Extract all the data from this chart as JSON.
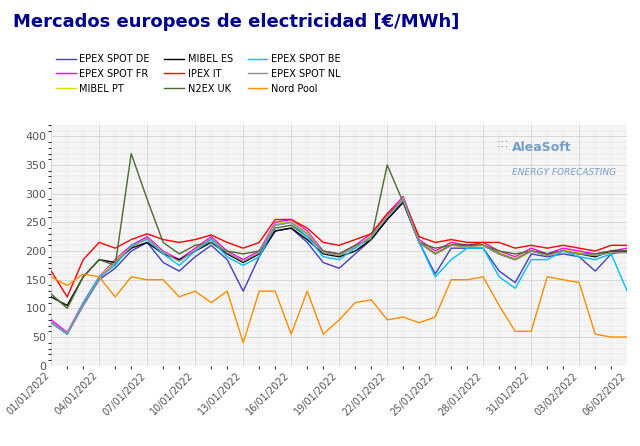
{
  "title": "Mercados europeos de electricidad [€/MWh]",
  "title_color": "#00008B",
  "background_color": "#ffffff",
  "plot_bg_color": "#f5f5f5",
  "grid_color": "#cccccc",
  "xlabels": [
    "01/01/2022",
    "04/01/2022",
    "07/01/2022",
    "10/01/2022",
    "13/01/2022",
    "16/01/2022",
    "19/01/2022",
    "22/01/2022",
    "25/01/2022",
    "28/01/2022",
    "31/01/2022",
    "03/02/2022",
    "06/02/2022"
  ],
  "ylim": [
    0,
    420
  ],
  "yticks": [
    0,
    50,
    100,
    150,
    200,
    250,
    300,
    350,
    400
  ],
  "series": [
    {
      "label": "EPEX SPOT DE",
      "color": "#4040C0",
      "values": [
        75,
        55,
        105,
        150,
        170,
        200,
        215,
        180,
        165,
        190,
        210,
        185,
        130,
        190,
        235,
        240,
        215,
        180,
        170,
        195,
        220,
        255,
        285,
        215,
        160,
        205,
        205,
        205,
        165,
        145,
        195,
        190,
        195,
        190,
        165,
        195,
        200
      ]
    },
    {
      "label": "EPEX SPOT FR",
      "color": "#FF00FF",
      "values": [
        80,
        58,
        110,
        155,
        185,
        210,
        225,
        200,
        185,
        205,
        225,
        200,
        185,
        200,
        250,
        255,
        235,
        200,
        195,
        210,
        230,
        265,
        295,
        220,
        200,
        215,
        210,
        215,
        200,
        190,
        205,
        195,
        205,
        200,
        195,
        200,
        205
      ]
    },
    {
      "label": "MIBEL PT",
      "color": "#DDDD00",
      "values": [
        75,
        56,
        108,
        153,
        183,
        207,
        222,
        198,
        182,
        202,
        222,
        197,
        182,
        197,
        247,
        252,
        232,
        197,
        192,
        207,
        227,
        262,
        292,
        217,
        197,
        212,
        207,
        212,
        197,
        187,
        202,
        192,
        202,
        197,
        192,
        197,
        202
      ]
    },
    {
      "label": "MIBEL ES",
      "color": "#000000",
      "values": [
        120,
        105,
        155,
        185,
        180,
        205,
        215,
        195,
        185,
        200,
        215,
        195,
        180,
        195,
        235,
        240,
        220,
        195,
        190,
        200,
        220,
        255,
        285,
        215,
        195,
        210,
        210,
        210,
        195,
        185,
        200,
        195,
        200,
        195,
        190,
        200,
        200
      ]
    },
    {
      "label": "IPEX IT",
      "color": "#FF0000",
      "values": [
        165,
        120,
        185,
        215,
        205,
        220,
        230,
        220,
        215,
        220,
        228,
        215,
        205,
        215,
        255,
        255,
        240,
        215,
        210,
        220,
        230,
        265,
        290,
        225,
        215,
        220,
        215,
        215,
        215,
        205,
        210,
        205,
        210,
        205,
        200,
        210,
        210
      ]
    },
    {
      "label": "N2EX UK",
      "color": "#4B6B2F",
      "values": [
        125,
        100,
        155,
        185,
        175,
        370,
        290,
        215,
        195,
        210,
        215,
        200,
        195,
        200,
        240,
        245,
        225,
        200,
        195,
        210,
        220,
        350,
        285,
        215,
        205,
        210,
        210,
        210,
        200,
        195,
        200,
        195,
        200,
        195,
        195,
        200,
        200
      ]
    },
    {
      "label": "EPEX SPOT BE",
      "color": "#00BFFF",
      "values": [
        75,
        55,
        110,
        155,
        175,
        210,
        220,
        195,
        175,
        200,
        220,
        190,
        175,
        190,
        245,
        250,
        225,
        190,
        185,
        205,
        225,
        260,
        290,
        215,
        155,
        185,
        205,
        205,
        155,
        135,
        185,
        185,
        200,
        190,
        185,
        195,
        130
      ]
    },
    {
      "label": "EPEX SPOT NL",
      "color": "#909090",
      "values": [
        76,
        56,
        107,
        151,
        180,
        207,
        222,
        198,
        182,
        202,
        222,
        197,
        182,
        197,
        245,
        250,
        230,
        197,
        192,
        207,
        225,
        260,
        290,
        215,
        195,
        210,
        207,
        210,
        195,
        185,
        200,
        192,
        200,
        195,
        192,
        197,
        197
      ]
    },
    {
      "label": "Nord Pool",
      "color": "#FF8C00",
      "values": [
        155,
        140,
        160,
        155,
        120,
        155,
        150,
        150,
        120,
        130,
        110,
        130,
        40,
        130,
        130,
        55,
        130,
        55,
        80,
        110,
        115,
        80,
        85,
        75,
        85,
        150,
        150,
        155,
        105,
        60,
        60,
        155,
        150,
        145,
        55,
        50,
        50
      ]
    }
  ],
  "watermark_line1": "AleaSoft",
  "watermark_line2": "ENERGY FORECASTING",
  "watermark_color": "#6090C0"
}
